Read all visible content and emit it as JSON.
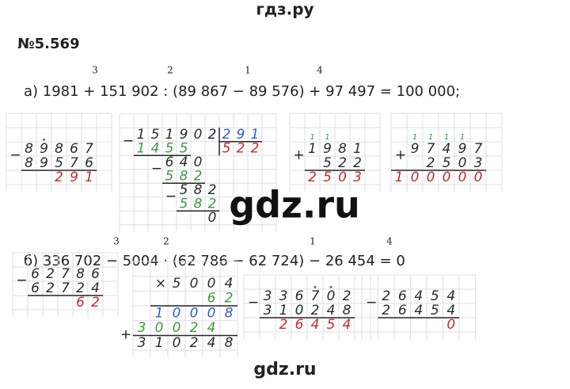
{
  "header": {
    "site": "гдз.ру"
  },
  "problem": "№5.569",
  "parts": [
    {
      "expression": "а) 1981 + 151 902 : (89 867 − 89 576) + 97 497 = 100 000;",
      "order": [
        "3",
        "2",
        "1",
        "4"
      ],
      "columns": [
        {
          "rows": [
            {
              "sign": "−",
              "digits": "89867",
              "color": "#2b2b2b"
            },
            {
              "digits": "89576",
              "color": "#2b2b2b"
            },
            {
              "digits": "291",
              "color": "#c62828"
            }
          ]
        },
        {
          "rows": [
            {
              "sign": "−",
              "digits": "151902",
              "color": "#2b2b2b"
            },
            {
              "digits": "291",
              "color": "#2f5fd0"
            },
            {
              "digits": "1455",
              "color": "#3a9a3a"
            },
            {
              "digits": "522",
              "color": "#c62828"
            },
            {
              "sign": "−",
              "digits": "640",
              "color": "#2b2b2b"
            },
            {
              "digits": "582",
              "color": "#3a9a3a"
            },
            {
              "sign": "−",
              "digits": "582",
              "color": "#2b2b2b"
            },
            {
              "digits": "582",
              "color": "#3a9a3a"
            },
            {
              "digits": "0",
              "color": "#2b2b2b"
            }
          ]
        },
        {
          "rows": [
            {
              "digits": "11",
              "color": "#3a9a3a"
            },
            {
              "sign": "+",
              "digits": "1981",
              "color": "#2b2b2b"
            },
            {
              "digits": "522",
              "color": "#2b2b2b"
            },
            {
              "digits": "2503",
              "color": "#c62828"
            }
          ]
        },
        {
          "rows": [
            {
              "digits": "1111",
              "color": "#3a9a3a"
            },
            {
              "sign": "+",
              "digits": "97497",
              "color": "#2b2b2b"
            },
            {
              "digits": "2503",
              "color": "#2b2b2b"
            },
            {
              "digits": "100000",
              "color": "#c62828"
            }
          ]
        }
      ]
    },
    {
      "expression": "б) 336 702 − 5004 · (62 786 − 62 724) − 26 454 = 0",
      "order": [
        "3",
        "2",
        "1",
        "4"
      ],
      "columns": [
        {
          "rows": [
            {
              "sign": "−",
              "digits": "62786",
              "color": "#2b2b2b"
            },
            {
              "digits": "62724",
              "color": "#2b2b2b"
            },
            {
              "digits": "62",
              "color": "#c62828"
            }
          ]
        },
        {
          "rows": [
            {
              "sign": "×",
              "digits": "5004",
              "color": "#2b2b2b"
            },
            {
              "digits": "62",
              "color": "#3a9a3a"
            },
            {
              "digits": "10008",
              "color": "#2f5fd0"
            },
            {
              "sign": "+",
              "digits": "30024",
              "color": "#3a9a3a"
            },
            {
              "digits": "310248",
              "color": "#2b2b2b"
            }
          ]
        },
        {
          "rows": [
            {
              "sign": "−",
              "digits": "336702",
              "color": "#2b2b2b"
            },
            {
              "digits": "310248",
              "color": "#2b2b2b"
            },
            {
              "digits": "26454",
              "color": "#c62828"
            }
          ]
        },
        {
          "rows": [
            {
              "sign": "−",
              "digits": "26454",
              "color": "#2b2b2b"
            },
            {
              "digits": "26454",
              "color": "#2b2b2b"
            },
            {
              "digits": "0",
              "color": "#c62828"
            }
          ]
        }
      ]
    }
  ],
  "watermark": "gdz.ru",
  "footer": "gdz.ru"
}
